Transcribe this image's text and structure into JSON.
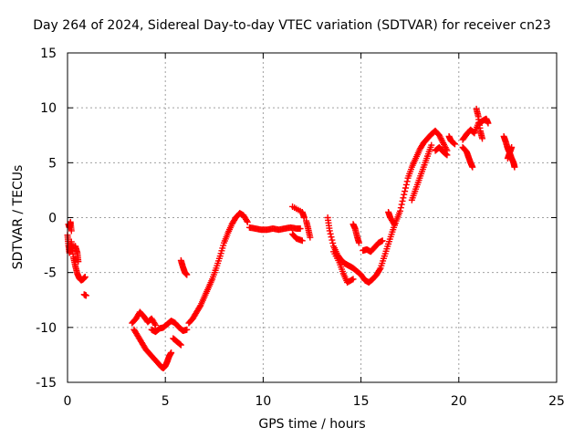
{
  "chart_data": {
    "type": "scatter",
    "title": "Day 264 of 2024, Sidereal Day-to-day VTEC variation (SDTVAR) for receiver cn23",
    "xlabel": "GPS time / hours",
    "ylabel": "SDTVAR / TECUs",
    "xlim": [
      0,
      25
    ],
    "ylim": [
      -15,
      15
    ],
    "xticks": [
      0,
      5,
      10,
      15,
      20,
      25
    ],
    "yticks": [
      -15,
      -10,
      -5,
      0,
      5,
      10,
      15
    ],
    "grid": true,
    "marker": "+",
    "color": "#ff0000",
    "series": [
      {
        "name": "SDTVAR",
        "segments": [
          [
            [
              0.0,
              -1.6
            ],
            [
              0.05,
              -2.5
            ],
            [
              0.1,
              -3.2
            ],
            [
              0.15,
              -3.0
            ],
            [
              0.2,
              -2.2
            ],
            [
              0.3,
              -3.6
            ],
            [
              0.4,
              -4.4
            ],
            [
              0.5,
              -5.1
            ],
            [
              0.6,
              -5.5
            ],
            [
              0.7,
              -5.7
            ],
            [
              0.8,
              -5.6
            ],
            [
              0.9,
              -5.4
            ]
          ],
          [
            [
              0.05,
              -0.6
            ],
            [
              0.1,
              -0.9
            ],
            [
              0.15,
              -0.4
            ],
            [
              0.2,
              -1.2
            ]
          ],
          [
            [
              0.4,
              -2.6
            ],
            [
              0.5,
              -3.2
            ],
            [
              0.55,
              -4.0
            ]
          ],
          [
            [
              0.85,
              -7.0
            ],
            [
              0.95,
              -7.1
            ]
          ],
          [
            [
              3.3,
              -9.6
            ],
            [
              3.5,
              -9.2
            ],
            [
              3.7,
              -8.6
            ],
            [
              3.9,
              -9.0
            ],
            [
              4.1,
              -9.5
            ],
            [
              4.3,
              -9.2
            ],
            [
              4.5,
              -9.8
            ]
          ],
          [
            [
              3.4,
              -10.2
            ],
            [
              3.6,
              -10.8
            ],
            [
              3.8,
              -11.4
            ],
            [
              4.0,
              -12.0
            ],
            [
              4.2,
              -12.4
            ],
            [
              4.4,
              -12.8
            ],
            [
              4.6,
              -13.2
            ],
            [
              4.8,
              -13.6
            ],
            [
              4.9,
              -13.7
            ],
            [
              5.0,
              -13.5
            ],
            [
              5.1,
              -13.1
            ],
            [
              5.2,
              -12.6
            ],
            [
              5.3,
              -12.3
            ]
          ],
          [
            [
              4.3,
              -10.2
            ],
            [
              4.5,
              -10.4
            ],
            [
              4.7,
              -10.1
            ],
            [
              4.9,
              -10.0
            ],
            [
              5.1,
              -9.7
            ],
            [
              5.3,
              -9.4
            ],
            [
              5.5,
              -9.6
            ],
            [
              5.7,
              -10.0
            ],
            [
              5.9,
              -10.3
            ],
            [
              6.1,
              -10.2
            ]
          ],
          [
            [
              5.4,
              -11.0
            ],
            [
              5.6,
              -11.3
            ],
            [
              5.8,
              -11.6
            ]
          ],
          [
            [
              6.2,
              -9.6
            ],
            [
              6.4,
              -9.2
            ],
            [
              6.6,
              -8.6
            ],
            [
              6.8,
              -8.0
            ],
            [
              7.0,
              -7.2
            ],
            [
              7.2,
              -6.4
            ],
            [
              7.4,
              -5.6
            ],
            [
              7.6,
              -4.6
            ],
            [
              7.8,
              -3.5
            ],
            [
              8.0,
              -2.3
            ],
            [
              8.2,
              -1.4
            ],
            [
              8.4,
              -0.6
            ],
            [
              8.6,
              0.0
            ],
            [
              8.8,
              0.4
            ],
            [
              9.0,
              0.2
            ],
            [
              9.2,
              -0.4
            ]
          ],
          [
            [
              5.8,
              -3.9
            ],
            [
              5.9,
              -4.5
            ],
            [
              6.0,
              -5.0
            ],
            [
              6.1,
              -5.2
            ]
          ],
          [
            [
              9.3,
              -0.9
            ],
            [
              9.6,
              -1.0
            ],
            [
              9.9,
              -1.1
            ],
            [
              10.2,
              -1.1
            ],
            [
              10.5,
              -1.0
            ],
            [
              10.8,
              -1.1
            ],
            [
              11.1,
              -1.0
            ],
            [
              11.4,
              -0.9
            ],
            [
              11.7,
              -1.0
            ],
            [
              11.9,
              -1.0
            ]
          ],
          [
            [
              11.5,
              -1.5
            ],
            [
              11.7,
              -1.9
            ],
            [
              12.0,
              -2.1
            ]
          ],
          [
            [
              11.5,
              1.0
            ],
            [
              12.0,
              0.5
            ],
            [
              12.1,
              0.0
            ]
          ],
          [
            [
              12.2,
              -0.3
            ],
            [
              12.3,
              -1.0
            ],
            [
              12.4,
              -1.8
            ]
          ],
          [
            [
              13.3,
              0.0
            ],
            [
              13.4,
              -1.2
            ],
            [
              13.6,
              -2.6
            ],
            [
              13.8,
              -3.4
            ],
            [
              14.0,
              -3.9
            ],
            [
              14.2,
              -4.2
            ],
            [
              14.4,
              -4.4
            ],
            [
              14.6,
              -4.6
            ],
            [
              14.8,
              -4.9
            ],
            [
              15.0,
              -5.2
            ],
            [
              15.2,
              -5.7
            ],
            [
              15.4,
              -5.9
            ],
            [
              15.6,
              -5.6
            ],
            [
              15.8,
              -5.2
            ],
            [
              16.0,
              -4.6
            ],
            [
              16.2,
              -3.5
            ],
            [
              16.4,
              -2.4
            ],
            [
              16.6,
              -1.3
            ],
            [
              16.8,
              -0.3
            ],
            [
              17.0,
              0.6
            ],
            [
              17.2,
              2.1
            ],
            [
              17.4,
              3.6
            ],
            [
              17.6,
              4.6
            ],
            [
              17.8,
              5.4
            ],
            [
              18.0,
              6.2
            ],
            [
              18.2,
              6.8
            ],
            [
              18.4,
              7.2
            ],
            [
              18.6,
              7.6
            ],
            [
              18.8,
              7.9
            ],
            [
              19.0,
              7.5
            ],
            [
              19.2,
              6.8
            ],
            [
              19.4,
              6.1
            ]
          ],
          [
            [
              13.6,
              -3.1
            ],
            [
              13.9,
              -4.1
            ],
            [
              14.1,
              -5.1
            ],
            [
              14.3,
              -5.9
            ],
            [
              14.6,
              -5.6
            ]
          ],
          [
            [
              14.6,
              -0.6
            ],
            [
              14.7,
              -1.0
            ],
            [
              14.8,
              -1.7
            ],
            [
              14.9,
              -2.3
            ]
          ],
          [
            [
              15.1,
              -3.0
            ],
            [
              15.3,
              -2.9
            ],
            [
              15.5,
              -3.1
            ],
            [
              15.7,
              -2.7
            ],
            [
              15.9,
              -2.3
            ],
            [
              16.1,
              -2.1
            ]
          ],
          [
            [
              16.4,
              0.5
            ],
            [
              16.5,
              0.0
            ],
            [
              16.7,
              -0.6
            ]
          ],
          [
            [
              17.6,
              1.6
            ],
            [
              17.8,
              2.6
            ],
            [
              18.0,
              3.6
            ],
            [
              18.2,
              4.6
            ],
            [
              18.4,
              5.6
            ],
            [
              18.6,
              6.6
            ]
          ],
          [
            [
              18.8,
              6.1
            ],
            [
              19.0,
              6.4
            ],
            [
              19.2,
              6.0
            ],
            [
              19.4,
              5.7
            ]
          ],
          [
            [
              19.5,
              7.4
            ],
            [
              19.6,
              7.0
            ],
            [
              19.8,
              6.7
            ]
          ],
          [
            [
              20.2,
              7.1
            ],
            [
              20.4,
              7.6
            ],
            [
              20.6,
              8.0
            ],
            [
              20.8,
              7.7
            ],
            [
              21.0,
              8.6
            ],
            [
              21.2,
              8.8
            ],
            [
              21.4,
              9.0
            ],
            [
              21.5,
              8.6
            ]
          ],
          [
            [
              20.2,
              6.4
            ],
            [
              20.4,
              6.0
            ],
            [
              20.5,
              5.5
            ],
            [
              20.6,
              5.0
            ],
            [
              20.7,
              4.6
            ]
          ],
          [
            [
              20.9,
              9.9
            ],
            [
              21.0,
              9.2
            ],
            [
              21.1,
              7.9
            ],
            [
              21.2,
              7.2
            ]
          ],
          [
            [
              22.3,
              7.4
            ],
            [
              22.4,
              6.9
            ],
            [
              22.5,
              6.3
            ],
            [
              22.6,
              5.9
            ],
            [
              22.7,
              5.4
            ],
            [
              22.8,
              5.0
            ],
            [
              22.85,
              4.6
            ]
          ],
          [
            [
              22.5,
              5.4
            ],
            [
              22.6,
              5.9
            ],
            [
              22.7,
              6.4
            ]
          ]
        ]
      }
    ]
  }
}
